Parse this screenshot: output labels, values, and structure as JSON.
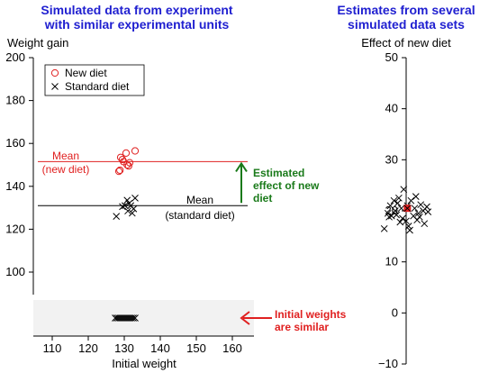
{
  "chart_data": [
    {
      "type": "scatter",
      "title": "Simulated data from experiment with similar experimental units",
      "title_lines": [
        "Simulated data from experiment",
        "with similar experimental units"
      ],
      "ylabel": "Weight gain",
      "xlabel": "Initial weight",
      "ylim": [
        88,
        200
      ],
      "xlim": [
        105,
        165
      ],
      "yticks": [
        100,
        120,
        140,
        160,
        180,
        200
      ],
      "xticks": [
        110,
        120,
        130,
        140,
        150,
        160
      ],
      "legend_position": "top-left",
      "colors": {
        "new": "#e02020",
        "standard": "#000000",
        "effect": "#1a7a1a",
        "title": "#1f1fd0"
      },
      "series": [
        {
          "name": "New diet",
          "marker": "circle",
          "x": [
            128.5,
            128.8,
            129.0,
            129.5,
            129.8,
            130.5,
            130.8,
            131.2,
            131.5,
            133.0
          ],
          "y": [
            147,
            147.5,
            153.5,
            152.5,
            151.5,
            155.5,
            150,
            149.5,
            151,
            156.5
          ]
        },
        {
          "name": "Standard diet",
          "marker": "x",
          "x": [
            127.8,
            129.5,
            130.2,
            130.8,
            131.0,
            131.3,
            131.8,
            132.2,
            132.6,
            133.0
          ],
          "y": [
            126,
            130.5,
            131,
            133.5,
            128.5,
            132,
            131,
            127.5,
            129.5,
            134.5
          ]
        }
      ],
      "means": [
        {
          "series": "New diet",
          "value": 151.5,
          "label_lines": [
            "Mean",
            "(new diet)"
          ]
        },
        {
          "series": "Standard diet",
          "value": 131,
          "label_lines": [
            "Mean",
            "(standard diet)"
          ]
        }
      ],
      "effect_label_lines": [
        "Estimated",
        "effect of new",
        "diet"
      ],
      "initial_weights": {
        "x": [
          127.5,
          128.0,
          128.5,
          129.0,
          129.5,
          130.0,
          130.5,
          131.0,
          131.5,
          132.0,
          132.5,
          133.0
        ]
      },
      "initial_label_lines": [
        "Initial weights",
        "are similar"
      ]
    },
    {
      "type": "scatter",
      "title": "Estimates from several simulated data sets",
      "title_lines": [
        "Estimates from several",
        "simulated data sets"
      ],
      "ylabel": "Effect of new diet",
      "ylim": [
        -10,
        50
      ],
      "yticks": [
        -10,
        0,
        10,
        20,
        30,
        40,
        50
      ],
      "marker": "x",
      "highlight_color": "#e02020",
      "points": [
        [
          -0.9,
          16.5
        ],
        [
          -0.75,
          19.5
        ],
        [
          -0.7,
          18.8
        ],
        [
          -0.65,
          21.0
        ],
        [
          -0.6,
          19.0
        ],
        [
          -0.5,
          22.0
        ],
        [
          -0.45,
          20.0
        ],
        [
          -0.4,
          19.2
        ],
        [
          -0.35,
          21.5
        ],
        [
          -0.3,
          22.5
        ],
        [
          -0.2,
          20.5
        ],
        [
          -0.15,
          18.5
        ],
        [
          -0.1,
          24.2
        ],
        [
          0.0,
          18.0
        ],
        [
          0.05,
          21.0
        ],
        [
          0.1,
          17.0
        ],
        [
          0.15,
          16.2
        ],
        [
          0.2,
          22.0
        ],
        [
          0.3,
          19.0
        ],
        [
          0.35,
          20.5
        ],
        [
          0.45,
          18.2
        ],
        [
          0.5,
          19.5
        ],
        [
          0.55,
          18.8
        ],
        [
          0.6,
          21.2
        ],
        [
          0.7,
          20.0
        ],
        [
          0.75,
          17.5
        ],
        [
          0.85,
          20.8
        ],
        [
          0.9,
          19.8
        ],
        [
          -0.25,
          17.8
        ],
        [
          0.4,
          22.8
        ]
      ],
      "highlight_point": [
        0.05,
        20.5
      ]
    }
  ]
}
